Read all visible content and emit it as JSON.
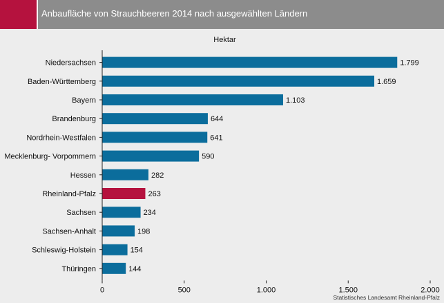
{
  "header": {
    "title": "Anbaufläche von Strauchbeeren 2014 nach ausgewählten Ländern"
  },
  "footer": {
    "source": "Statistisches Landesamt Rheinland-Pfalz"
  },
  "colors": {
    "bar": "#0b6d9c",
    "highlight": "#b5123e",
    "header": "#8c8c8c",
    "background": "#ededed"
  },
  "chart_data": {
    "type": "bar",
    "orientation": "horizontal",
    "unit_label": "Hektar",
    "categories": [
      "Niedersachsen",
      "Baden-Württemberg",
      "Bayern",
      "Brandenburg",
      "Nordrhein-Westfalen",
      "Mecklenburg- Vorpommern",
      "Hessen",
      "Rheinland-Pfalz",
      "Sachsen",
      "Sachsen-Anhalt",
      "Schleswig-Holstein",
      "Thüringen"
    ],
    "values": [
      1799,
      1659,
      1103,
      644,
      641,
      590,
      282,
      263,
      234,
      198,
      154,
      144
    ],
    "value_labels": [
      "1.799",
      "1.659",
      "1.103",
      "644",
      "641",
      "590",
      "282",
      "263",
      "234",
      "198",
      "154",
      "144"
    ],
    "highlight_category": "Rheinland-Pfalz",
    "xlim": [
      0,
      2000
    ],
    "x_ticks": [
      0,
      500,
      1000,
      1500,
      2000
    ],
    "x_tick_labels": [
      "0",
      "500",
      "1.000",
      "1.500",
      "2.000"
    ],
    "grid": false
  }
}
